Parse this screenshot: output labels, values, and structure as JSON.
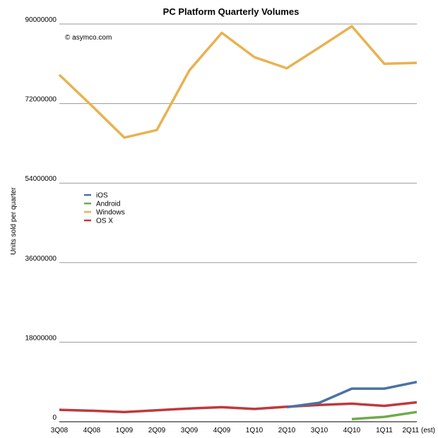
{
  "chart_data": {
    "type": "line",
    "title": "PC Platform Quarterly Volumes",
    "annotation": "© asymco.com",
    "ylabel": "Units sold per quarter",
    "xlabel": "",
    "categories": [
      "3Q08",
      "4Q08",
      "1Q09",
      "2Q09",
      "3Q09",
      "4Q09",
      "1Q10",
      "2Q10",
      "3Q10",
      "4Q10",
      "1Q11",
      "2Q11 (est)"
    ],
    "ylim": [
      0,
      90000000
    ],
    "yticks": [
      0,
      18000000,
      36000000,
      54000000,
      72000000,
      90000000
    ],
    "ytick_labels": [
      "0",
      "18000000",
      "36000000",
      "54000000",
      "72000000",
      "90000000"
    ],
    "grid": true,
    "legend_position": "left-middle",
    "series": [
      {
        "name": "iOS",
        "color": "#4a72a6",
        "values": [
          null,
          null,
          null,
          null,
          null,
          null,
          null,
          3300000,
          4300000,
          7500000,
          7500000,
          9000000
        ]
      },
      {
        "name": "Android",
        "color": "#6fab4c",
        "values": [
          null,
          null,
          null,
          null,
          null,
          null,
          null,
          null,
          null,
          600000,
          1100000,
          2200000
        ]
      },
      {
        "name": "Windows",
        "color": "#e9b24f",
        "values": [
          78500000,
          71500000,
          64300000,
          66000000,
          79500000,
          88000000,
          82500000,
          80000000,
          84700000,
          89500000,
          81000000,
          81200000
        ]
      },
      {
        "name": "OS X",
        "color": "#c0393b",
        "values": [
          2700000,
          2500000,
          2200000,
          2600000,
          3000000,
          3300000,
          2900000,
          3400000,
          3800000,
          4100000,
          3600000,
          4400000
        ]
      }
    ]
  }
}
